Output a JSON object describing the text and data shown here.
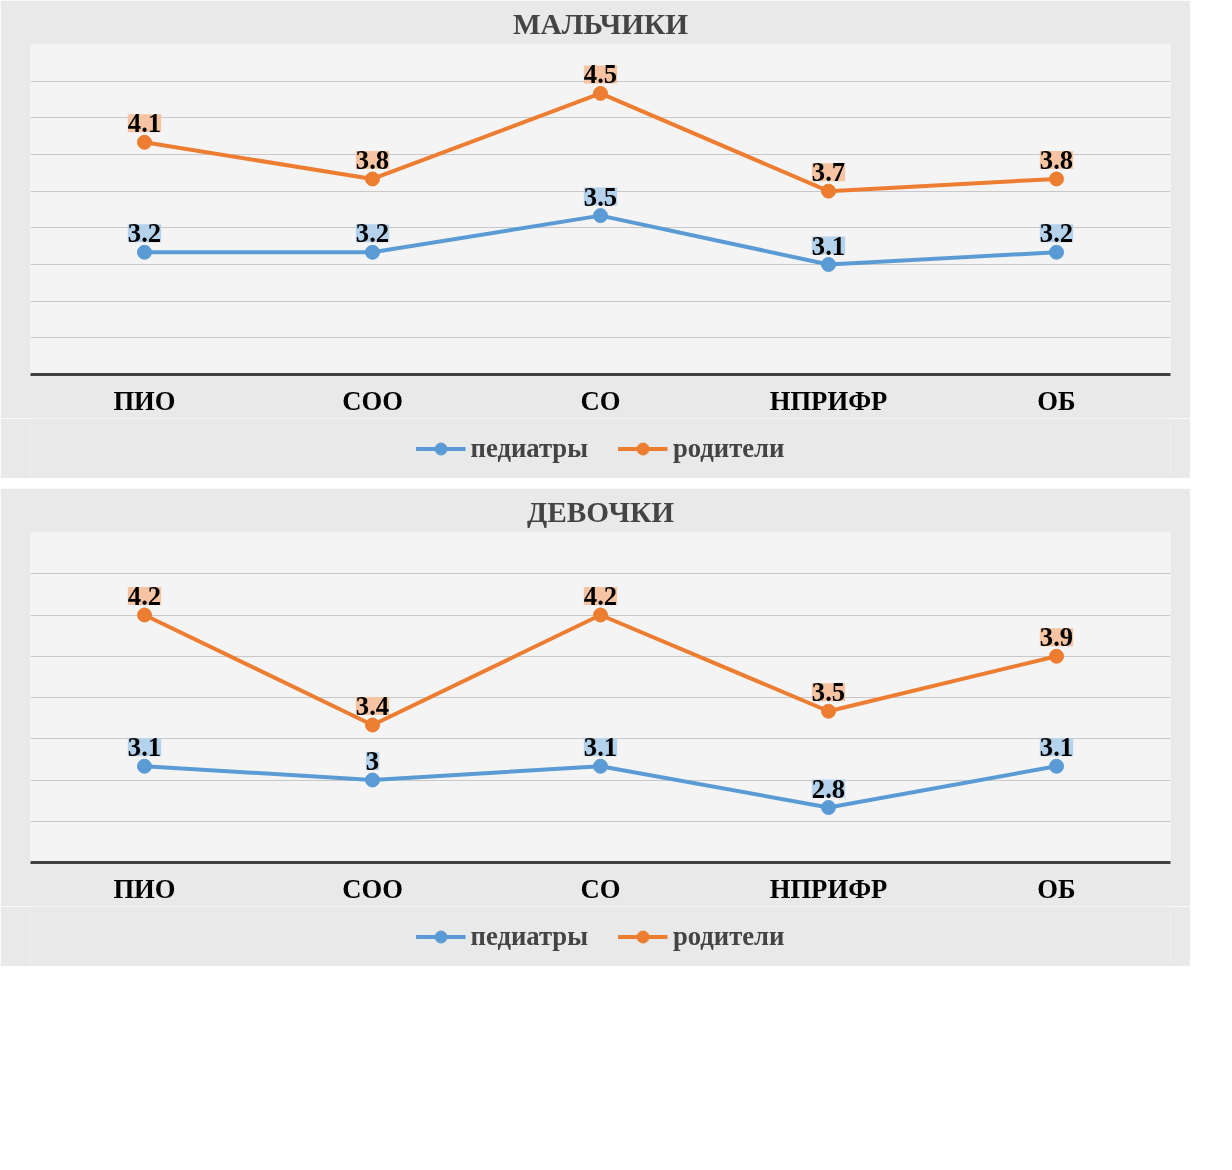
{
  "chart_data": [
    {
      "type": "line",
      "title": "МАЛЬЧИКИ",
      "categories": [
        "ПИО",
        "СОО",
        "СО",
        "НПРИФР",
        "ОБ"
      ],
      "series": [
        {
          "name": "педиатры",
          "color": "#5b9bd5",
          "values": [
            3.2,
            3.2,
            3.5,
            3.1,
            3.2
          ]
        },
        {
          "name": "родители",
          "color": "#ed7d31",
          "values": [
            4.1,
            3.8,
            4.5,
            3.7,
            3.8
          ]
        }
      ],
      "ylim": [
        2.2,
        4.9
      ],
      "yticks": [
        {
          "value": 2.2,
          "label": null
        },
        {
          "value": 2.5,
          "label": null
        },
        {
          "value": 2.8,
          "label": null
        },
        {
          "value": 3.1,
          "label": null
        },
        {
          "value": 3.4,
          "label": null
        },
        {
          "value": 3.7,
          "label": null
        },
        {
          "value": 4.0,
          "label": null
        },
        {
          "value": 4.3,
          "label": null
        },
        {
          "value": 4.6,
          "label": null
        },
        {
          "value": 4.9,
          "label": null
        }
      ],
      "tick_labels": "x",
      "grid": "y",
      "data_labels": true,
      "legend": "bottom",
      "marker": "circle",
      "line_style": "solid"
    },
    {
      "type": "line",
      "title": "ДЕВОЧКИ",
      "categories": [
        "ПИО",
        "СОО",
        "СО",
        "НПРИФР",
        "ОБ"
      ],
      "series": [
        {
          "name": "педиатры",
          "color": "#5b9bd5",
          "values": [
            3.1,
            3,
            3.1,
            2.8,
            3.1
          ]
        },
        {
          "name": "родители",
          "color": "#ed7d31",
          "values": [
            4.2,
            3.4,
            4.2,
            3.5,
            3.9
          ]
        }
      ],
      "ylim": [
        2.4,
        4.8
      ],
      "yticks": [
        {
          "value": 2.4,
          "label": null
        },
        {
          "value": 2.7,
          "label": null
        },
        {
          "value": 3.0,
          "label": null
        },
        {
          "value": 3.3,
          "label": null
        },
        {
          "value": 3.6,
          "label": null
        },
        {
          "value": 3.9,
          "label": null
        },
        {
          "value": 4.2,
          "label": null
        },
        {
          "value": 4.5,
          "label": null
        },
        {
          "value": 4.8,
          "label": null
        }
      ],
      "tick_labels": "x",
      "grid": "y",
      "data_labels": true,
      "legend": "bottom",
      "marker": "circle",
      "line_style": "solid"
    }
  ]
}
